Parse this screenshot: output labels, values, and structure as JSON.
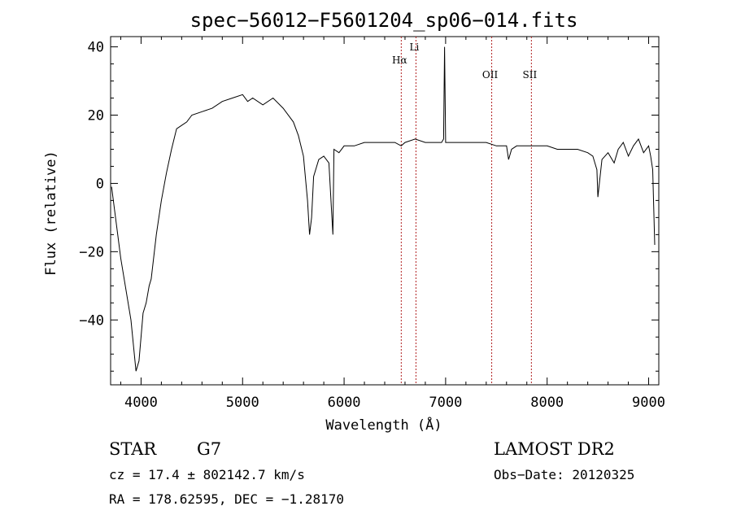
{
  "chart_data": {
    "type": "line",
    "title": "spec−56012−F5601204_sp06−014.fits",
    "xlabel": "Wavelength (Å)",
    "ylabel": "Flux (relative)",
    "xlim": [
      3700,
      9100
    ],
    "ylim": [
      -59,
      43
    ],
    "xticks": [
      4000,
      5000,
      6000,
      7000,
      8000,
      9000
    ],
    "yticks": [
      40,
      20,
      0,
      -20,
      -40
    ],
    "ytick_labels": [
      "40",
      "20",
      "0",
      "−20",
      "−40"
    ],
    "grid": false,
    "line_markers": [
      {
        "label": "Hα",
        "x": 6563
      },
      {
        "label": "Li",
        "x": 6708
      },
      {
        "label": "OII",
        "x": 7454
      },
      {
        "label": "SII",
        "x": 7845
      }
    ],
    "series": [
      {
        "x": [
          3710,
          3800,
          3900,
          3950,
          3980,
          4000,
          4020,
          4050,
          4080,
          4100,
          4150,
          4200,
          4250,
          4300,
          4350,
          4400,
          4450,
          4500,
          4600,
          4700,
          4800,
          4900,
          5000,
          5050,
          5100,
          5200,
          5300,
          5400,
          5500,
          5550,
          5600,
          5640,
          5660,
          5680,
          5700,
          5750,
          5800,
          5850,
          5880,
          5890,
          5900,
          5950,
          6000,
          6100,
          6200,
          6300,
          6400,
          6500,
          6563,
          6600,
          6700,
          6800,
          6900,
          6960,
          6980,
          6990,
          7000,
          7100,
          7200,
          7300,
          7400,
          7500,
          7600,
          7620,
          7650,
          7700,
          7800,
          7900,
          8000,
          8100,
          8200,
          8300,
          8400,
          8450,
          8490,
          8500,
          8540,
          8600,
          8660,
          8700,
          8750,
          8800,
          8850,
          8900,
          8950,
          9000,
          9020,
          9040,
          9060
        ],
        "y": [
          -1,
          -22,
          -40,
          -55,
          -52,
          -45,
          -38,
          -35,
          -30,
          -28,
          -15,
          -5,
          3,
          10,
          16,
          17,
          18,
          20,
          21,
          22,
          24,
          25,
          26,
          24,
          25,
          23,
          25,
          22,
          18,
          14,
          8,
          -5,
          -15,
          -10,
          2,
          7,
          8,
          6,
          -10,
          -15,
          10,
          9,
          11,
          11,
          12,
          12,
          12,
          12,
          11,
          12,
          13,
          12,
          12,
          12,
          13,
          40,
          12,
          12,
          12,
          12,
          12,
          11,
          11,
          7,
          10,
          11,
          11,
          11,
          11,
          10,
          10,
          10,
          9,
          8,
          4,
          -4,
          7,
          9,
          6,
          10,
          12,
          8,
          11,
          13,
          9,
          11,
          8,
          4,
          -18
        ]
      }
    ]
  },
  "info": {
    "object_class": "STAR",
    "subclass": "G7",
    "survey": "LAMOST DR2",
    "redshift": "cz = 17.4 ± 802142.7 km/s",
    "obs_date": "Obs−Date: 20120325",
    "coords": "RA = 178.62595, DEC =  −1.28170"
  }
}
